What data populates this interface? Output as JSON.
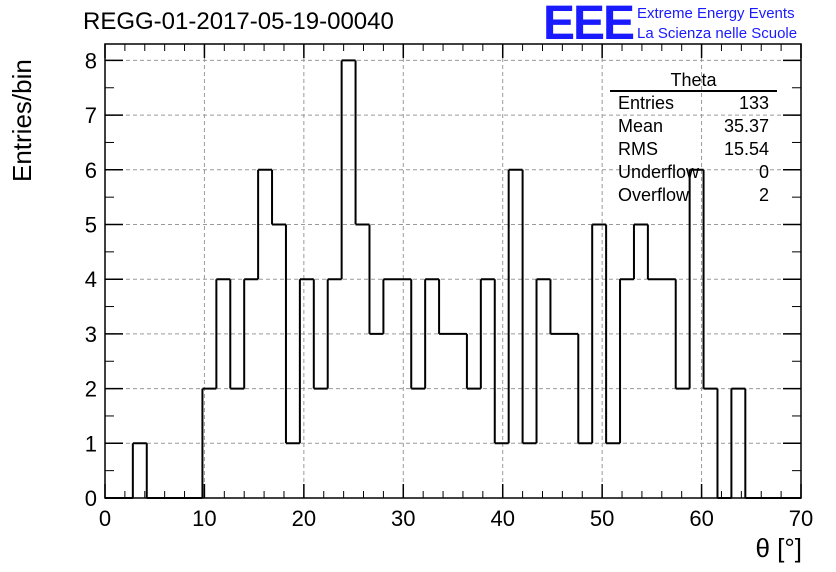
{
  "header": {
    "title": "REGG-01-2017-05-19-00040"
  },
  "logo": {
    "mark": "EEE",
    "line1": "Extreme Energy Events",
    "line2": "La Scienza nelle Scuole",
    "color": "#1a1aff"
  },
  "stats_box": {
    "name": "Theta",
    "rows": [
      {
        "label": "Entries",
        "value": "133"
      },
      {
        "label": "Mean",
        "value": "35.37"
      },
      {
        "label": "RMS",
        "value": "15.54"
      },
      {
        "label": "Underflow",
        "value": "0"
      },
      {
        "label": "Overflow",
        "value": "2"
      }
    ]
  },
  "chart_data": {
    "type": "histogram",
    "xlabel": "θ [°]",
    "ylabel": "Entries/bin",
    "xlim": [
      0,
      70
    ],
    "ylim": [
      0,
      8.3
    ],
    "grid": true,
    "bin_width": 1.4,
    "x_ticks": [
      0,
      10,
      20,
      30,
      40,
      50,
      60,
      70
    ],
    "y_ticks": [
      0,
      1,
      2,
      3,
      4,
      5,
      6,
      7,
      8
    ],
    "bin_edges_start": 0,
    "counts": [
      0,
      0,
      1,
      0,
      0,
      0,
      0,
      2,
      4,
      2,
      4,
      6,
      5,
      1,
      4,
      2,
      4,
      8,
      5,
      3,
      4,
      4,
      2,
      4,
      3,
      3,
      2,
      4,
      1,
      6,
      1,
      4,
      3,
      3,
      1,
      5,
      1,
      4,
      5,
      4,
      4,
      2,
      6,
      2,
      0,
      2,
      0,
      0,
      0,
      0
    ],
    "line_color": "#000000"
  }
}
